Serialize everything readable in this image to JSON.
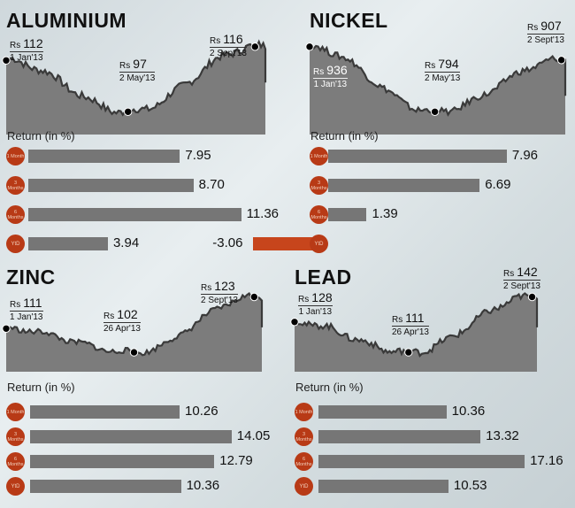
{
  "panels": [
    {
      "name": "ALUMINIUM",
      "chart_data": {
        "type": "area",
        "title": "ALUMINIUM",
        "x": [
          "1 Jan'13",
          "2 May'13",
          "2 Sept'13"
        ],
        "series": [
          {
            "values": [
              112,
              97,
              116
            ]
          }
        ]
      },
      "annotations": [
        {
          "rs": "Rs",
          "price": "112",
          "date": "1 Jan'13"
        },
        {
          "rs": "Rs",
          "price": "97",
          "date": "2 May'13"
        },
        {
          "rs": "Rs",
          "price": "116",
          "date": "2 Sept'13"
        }
      ],
      "return_label": "Return (in %)",
      "returns": [
        {
          "period": "1 Month",
          "value": 7.95,
          "label": "7.95"
        },
        {
          "period": "3 Months",
          "value": 8.7,
          "label": "8.70"
        },
        {
          "period": "6 Months",
          "value": 11.36,
          "label": "11.36"
        },
        {
          "period": "YtD",
          "value": 3.94,
          "label": "3.94"
        }
      ]
    },
    {
      "name": "NICKEL",
      "chart_data": {
        "type": "area",
        "title": "NICKEL",
        "x": [
          "1 Jan'13",
          "2 May'13",
          "2 Sept'13"
        ],
        "series": [
          {
            "values": [
              936,
              794,
              907
            ]
          }
        ]
      },
      "annotations": [
        {
          "rs": "Rs",
          "price": "936",
          "date": "1 Jan'13"
        },
        {
          "rs": "Rs",
          "price": "794",
          "date": "2 May'13"
        },
        {
          "rs": "Rs",
          "price": "907",
          "date": "2 Sept'13"
        }
      ],
      "return_label": "Return (in %)",
      "returns": [
        {
          "period": "1 Month",
          "value": 7.96,
          "label": "7.96"
        },
        {
          "period": "3 Months",
          "value": 6.69,
          "label": "6.69"
        },
        {
          "period": "6 Months",
          "value": 1.39,
          "label": "1.39"
        },
        {
          "period": "YtD",
          "value": -3.06,
          "label": "-3.06"
        }
      ]
    },
    {
      "name": "ZINC",
      "chart_data": {
        "type": "area",
        "title": "ZINC",
        "x": [
          "1 Jan'13",
          "26 Apr'13",
          "2 Sept'13"
        ],
        "series": [
          {
            "values": [
              111,
              102,
              123
            ]
          }
        ]
      },
      "annotations": [
        {
          "rs": "Rs",
          "price": "111",
          "date": "1 Jan'13"
        },
        {
          "rs": "Rs",
          "price": "102",
          "date": "26 Apr'13"
        },
        {
          "rs": "Rs",
          "price": "123",
          "date": "2 Sept'13"
        }
      ],
      "return_label": "Return (in %)",
      "returns": [
        {
          "period": "1 Month",
          "value": 10.26,
          "label": "10.26"
        },
        {
          "period": "3 Months",
          "value": 14.05,
          "label": "14.05"
        },
        {
          "period": "6 Months",
          "value": 12.79,
          "label": "12.79"
        },
        {
          "period": "YtD",
          "value": 10.36,
          "label": "10.36"
        }
      ]
    },
    {
      "name": "LEAD",
      "chart_data": {
        "type": "area",
        "title": "LEAD",
        "x": [
          "1 Jan'13",
          "26 Apr'13",
          "2 Sept'13"
        ],
        "series": [
          {
            "values": [
              128,
              111,
              142
            ]
          }
        ]
      },
      "annotations": [
        {
          "rs": "Rs",
          "price": "128",
          "date": "1 Jan'13"
        },
        {
          "rs": "Rs",
          "price": "111",
          "date": "26 Apr'13"
        },
        {
          "rs": "Rs",
          "price": "142",
          "date": "2 Sept'13"
        }
      ],
      "return_label": "Return (in %)",
      "returns": [
        {
          "period": "1 Month",
          "value": 10.36,
          "label": "10.36"
        },
        {
          "period": "3 Months",
          "value": 13.32,
          "label": "13.32"
        },
        {
          "period": "6 Months",
          "value": 17.16,
          "label": "17.16"
        },
        {
          "period": "YtD",
          "value": 10.53,
          "label": "10.53"
        }
      ]
    }
  ],
  "colors": {
    "area": "#7c7c7c",
    "line": "#3a3a3a",
    "bar": "#767676",
    "negative_bar": "#c7451c",
    "badge": "#b83a16"
  }
}
